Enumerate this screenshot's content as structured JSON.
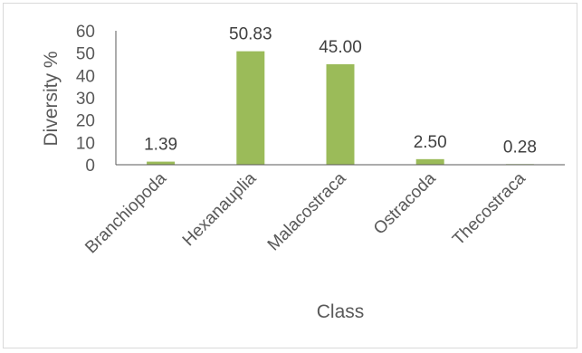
{
  "chart_data": {
    "type": "bar",
    "categories": [
      "Branchiopoda",
      "Hexanauplia",
      "Malacostraca",
      "Ostracoda",
      "Thecostraca"
    ],
    "values": [
      1.39,
      50.83,
      45.0,
      2.5,
      0.28
    ],
    "data_labels": [
      "1.39",
      "50.83",
      "45.00",
      "2.50",
      "0.28"
    ],
    "title": "",
    "xlabel": "Class",
    "ylabel": "Diversity %",
    "ylim": [
      0,
      60
    ],
    "yticks": [
      "0",
      "10",
      "20",
      "30",
      "40",
      "50",
      "60"
    ],
    "grid": false,
    "legend": "none",
    "bar_color": "#9bbb59",
    "axis_color": "#595959"
  }
}
